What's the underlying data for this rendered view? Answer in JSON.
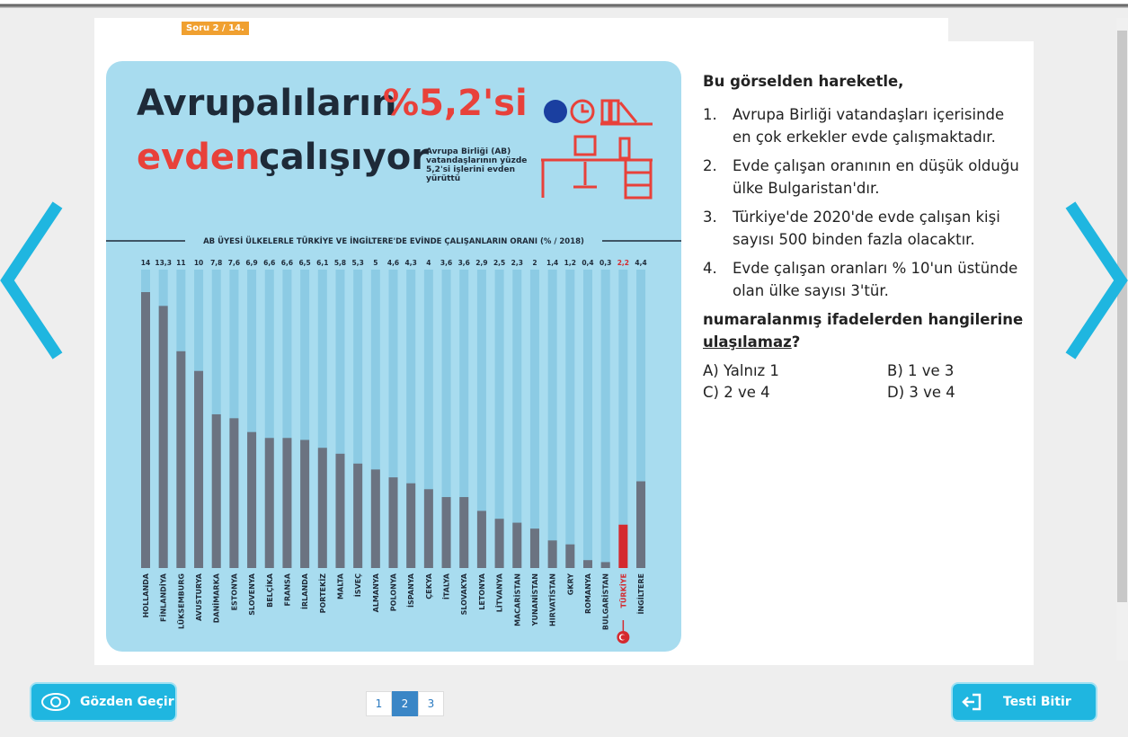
{
  "header": {
    "badge": "Soru 2 / 14."
  },
  "infographic": {
    "title_parts": [
      "Avrupalıların",
      "%5,2'si",
      "evden",
      "çalışıyor"
    ],
    "subtitle": "Avrupa Birliği (AB) vatandaşlarının yüzde 5,2'si işlerini evden yürüttü"
  },
  "chart_data": {
    "type": "bar",
    "title": "AB ÜYESİ ÜLKELERLE TÜRKİYE VE İNGİLTERE'DE EVİNDE ÇALIŞANLARIN ORANI (% / 2018)",
    "categories": [
      "HOLLANDA",
      "FİNLANDİYA",
      "LÜKSEMBURG",
      "AVUSTURYA",
      "DANİMARKA",
      "ESTONYA",
      "SLOVENYA",
      "BELÇİKA",
      "FRANSA",
      "İRLANDA",
      "PORTEKİZ",
      "MALTA",
      "İSVEÇ",
      "ALMANYA",
      "POLONYA",
      "İSPANYA",
      "ÇEKYA",
      "İTALYA",
      "SLOVAKYA",
      "LETONYA",
      "LİTVANYA",
      "MACARİSTAN",
      "YUNANİSTAN",
      "HIRVATİSTAN",
      "GKRY",
      "ROMANYA",
      "BULGARİSTAN",
      "TÜRKİYE",
      "İNGİLTERE"
    ],
    "values": [
      14,
      13.3,
      11,
      10,
      7.8,
      7.6,
      6.9,
      6.6,
      6.6,
      6.5,
      6.1,
      5.8,
      5.3,
      5,
      4.6,
      4.3,
      4,
      3.6,
      3.6,
      2.9,
      2.5,
      2.3,
      2,
      1.4,
      1.2,
      0.4,
      0.3,
      2.2,
      4.4
    ],
    "value_labels": [
      "14",
      "13,3",
      "11",
      "10",
      "7,8",
      "7,6",
      "6,9",
      "6,6",
      "6,6",
      "6,5",
      "6,1",
      "5,8",
      "5,3",
      "5",
      "4,6",
      "4,3",
      "4",
      "3,6",
      "3,6",
      "2,9",
      "2,5",
      "2,3",
      "2",
      "1,4",
      "1,2",
      "0,4",
      "0,3",
      "2,2",
      "4,4"
    ],
    "colors": [
      "#6b7381",
      "#6b7381",
      "#6b7381",
      "#6b7381",
      "#6b7381",
      "#6b7381",
      "#6b7381",
      "#6b7381",
      "#6b7381",
      "#6b7381",
      "#6b7381",
      "#6b7381",
      "#6b7381",
      "#6b7381",
      "#6b7381",
      "#6b7381",
      "#6b7381",
      "#6b7381",
      "#6b7381",
      "#6b7381",
      "#6b7381",
      "#6b7381",
      "#6b7381",
      "#6b7381",
      "#6b7381",
      "#6b7381",
      "#6b7381",
      "#d42a2f",
      "#6b7381"
    ]
  },
  "question": {
    "intro": "Bu görselden hareketle,",
    "items": [
      {
        "number": "1.",
        "text": "Avrupa Birliği vatandaşları içerisinde en çok erkekler evde çalışmaktadır."
      },
      {
        "number": "2.",
        "text": "Evde çalışan oranının en düşük olduğu ülke Bulgaristan'dır."
      },
      {
        "number": "3.",
        "text": "Türkiye'de 2020'de evde çalışan kişi sayısı 500 binden fazla olacaktır."
      },
      {
        "number": "4.",
        "text": "Evde çalışan oranları % 10'un üstünde olan ülke sayısı 3'tür."
      }
    ],
    "stem": "numaralanmış ifadelerden hangilerine",
    "stem_underlined": "ulaşılamaz",
    "stem_end": "?",
    "options": [
      {
        "label": "A)",
        "text": "Yalnız 1"
      },
      {
        "label": "B)",
        "text": "1 ve 3"
      },
      {
        "label": "C)",
        "text": "2 ve 4"
      },
      {
        "label": "D)",
        "text": "3 ve 4"
      }
    ]
  },
  "footer": {
    "review_button": "Gözden Geçir",
    "finish_button": "Testi Bitir",
    "pages": [
      1,
      2,
      3
    ],
    "current_page": 2
  }
}
